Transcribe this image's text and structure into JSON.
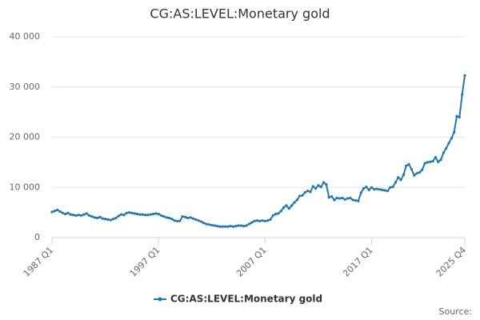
{
  "chart_data": {
    "type": "line",
    "title": "CG:AS:LEVEL:Monetary gold",
    "source": "Source:",
    "categories": [
      "1987 Q1",
      null,
      null,
      null,
      null,
      null,
      null,
      null,
      null,
      null,
      null,
      null,
      null,
      null,
      null,
      null,
      null,
      null,
      null,
      null,
      null,
      null,
      null,
      null,
      null,
      null,
      null,
      null,
      null,
      null,
      null,
      null,
      null,
      null,
      null,
      null,
      null,
      null,
      null,
      null,
      "1997 Q1",
      null,
      null,
      null,
      null,
      null,
      null,
      null,
      null,
      null,
      null,
      null,
      null,
      null,
      null,
      null,
      null,
      null,
      null,
      null,
      null,
      null,
      null,
      null,
      null,
      null,
      null,
      null,
      null,
      null,
      null,
      null,
      null,
      null,
      null,
      null,
      null,
      null,
      null,
      null,
      "2007 Q1",
      null,
      null,
      null,
      null,
      null,
      null,
      null,
      null,
      null,
      null,
      null,
      null,
      null,
      null,
      null,
      null,
      null,
      null,
      null,
      null,
      null,
      null,
      null,
      null,
      null,
      null,
      null,
      null,
      null,
      null,
      null,
      null,
      null,
      null,
      null,
      null,
      null,
      null,
      null,
      "2017 Q1",
      null,
      null,
      null,
      null,
      null,
      null,
      null,
      null,
      null,
      null,
      null,
      null,
      null,
      null,
      null,
      null,
      null,
      null,
      null,
      null,
      null,
      null,
      null,
      null,
      null,
      null,
      null,
      null,
      null,
      null,
      null,
      null,
      null,
      null,
      "2025 Q4"
    ],
    "series": [
      {
        "name": "CG:AS:LEVEL:Monetary gold",
        "color": "#1f78b4",
        "values": [
          5100,
          5300,
          5500,
          5200,
          4900,
          4700,
          4900,
          4600,
          4500,
          4400,
          4500,
          4400,
          4600,
          4800,
          4400,
          4200,
          4000,
          3900,
          4100,
          3800,
          3700,
          3600,
          3500,
          3700,
          3900,
          4300,
          4600,
          4500,
          4900,
          5000,
          4900,
          4800,
          4700,
          4600,
          4600,
          4500,
          4500,
          4600,
          4700,
          4800,
          4700,
          4400,
          4200,
          4000,
          3900,
          3700,
          3400,
          3300,
          3300,
          4200,
          4100,
          3900,
          4000,
          3800,
          3600,
          3400,
          3200,
          2900,
          2700,
          2600,
          2500,
          2400,
          2300,
          2200,
          2200,
          2200,
          2200,
          2300,
          2200,
          2300,
          2400,
          2400,
          2300,
          2400,
          2700,
          3000,
          3300,
          3400,
          3300,
          3400,
          3300,
          3400,
          3600,
          4400,
          4700,
          4800,
          5300,
          6000,
          6400,
          5800,
          6400,
          7000,
          7500,
          8300,
          8400,
          9000,
          9300,
          9100,
          10200,
          9800,
          10400,
          10100,
          11000,
          10600,
          8000,
          8200,
          7500,
          7900,
          7800,
          7900,
          7600,
          7800,
          7900,
          7500,
          7400,
          7300,
          8900,
          9800,
          10100,
          9500,
          10000,
          9600,
          9700,
          9600,
          9500,
          9400,
          9300,
          10000,
          10100,
          11000,
          12000,
          11500,
          12500,
          14300,
          14600,
          13600,
          12400,
          12800,
          13000,
          13500,
          14800,
          15000,
          15100,
          15200,
          16000,
          15100,
          15500,
          16900,
          17800,
          18800,
          19800,
          21000,
          24200,
          24000,
          28500,
          32300
        ]
      }
    ],
    "ylim": [
      0,
      40000
    ],
    "yticks": [
      0,
      {
        "value": 10000,
        "label": "10 000"
      },
      {
        "value": 20000,
        "label": "20 000"
      },
      {
        "value": 30000,
        "label": "30 000"
      },
      {
        "value": 40000,
        "label": "40 000"
      }
    ],
    "grid": true,
    "legend": "bottom"
  }
}
